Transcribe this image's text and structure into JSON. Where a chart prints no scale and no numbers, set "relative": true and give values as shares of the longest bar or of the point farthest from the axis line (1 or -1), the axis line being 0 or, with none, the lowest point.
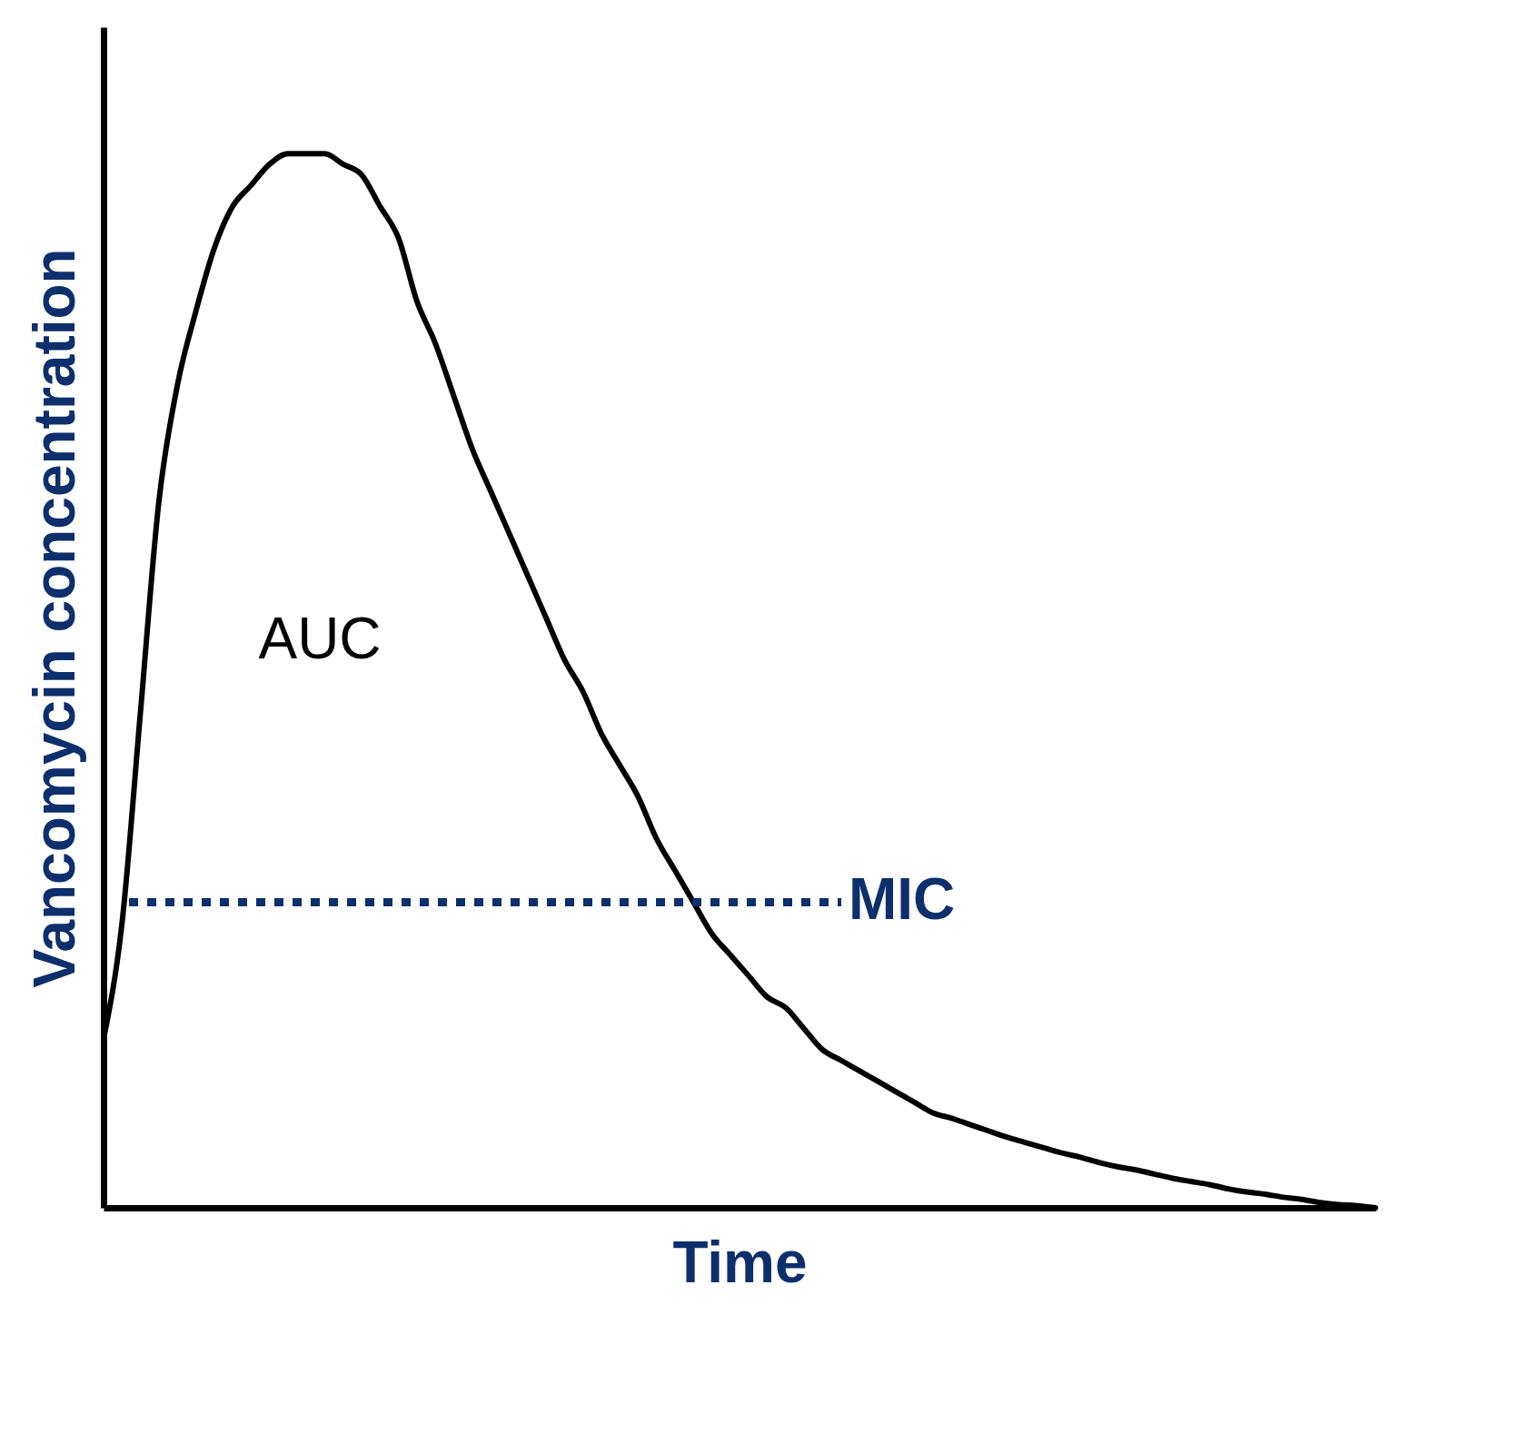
{
  "chart_data": {
    "type": "line",
    "relative": true,
    "categories": [
      null,
      null,
      null,
      null,
      null,
      null,
      null,
      null,
      null,
      null,
      null,
      null,
      null,
      null,
      null,
      null,
      null,
      null,
      null,
      null,
      null,
      null,
      null,
      null,
      null,
      null,
      null,
      null,
      null,
      null,
      null,
      null,
      null,
      null,
      null,
      null,
      null,
      null,
      null,
      null,
      null,
      null,
      null,
      null,
      null,
      null,
      null,
      null,
      null,
      null,
      null,
      null,
      null,
      null,
      null,
      null,
      null,
      null,
      null,
      null,
      null,
      null,
      null,
      null,
      null,
      null,
      null,
      null,
      null,
      null
    ],
    "series": [
      {
        "color": "#000000",
        "values": [
          0.16,
          0.27,
          0.47,
          0.67,
          0.78,
          0.85,
          0.91,
          0.95,
          0.97,
          0.99,
          1.0,
          1.0,
          1.0,
          0.99,
          0.98,
          0.95,
          0.92,
          0.86,
          0.82,
          0.77,
          0.72,
          0.68,
          0.64,
          0.6,
          0.56,
          0.52,
          0.49,
          0.45,
          0.42,
          0.39,
          0.35,
          0.32,
          0.29,
          0.26,
          0.24,
          0.22,
          0.2,
          0.19,
          0.17,
          0.15,
          0.14,
          0.13,
          0.12,
          0.11,
          0.1,
          0.09,
          0.085,
          0.079,
          0.073,
          0.067,
          0.062,
          0.057,
          0.052,
          0.048,
          0.043,
          0.039,
          0.036,
          0.032,
          0.028,
          0.025,
          0.022,
          0.018,
          0.015,
          0.013,
          0.01,
          0.008,
          0.005,
          0.003,
          0.002,
          0.0
        ]
      }
    ],
    "xlabel": "Time",
    "ylabel": "Vancomycin concentration",
    "annotations": [
      "AUC"
    ],
    "ref_lines": [
      {
        "axis": "y",
        "value": 0.29,
        "label": "MIC",
        "color": "#0d2f6b",
        "line_style": "dotted"
      }
    ],
    "grid": false,
    "tick_labels": false,
    "marker": "none",
    "line_style": "solid"
  }
}
